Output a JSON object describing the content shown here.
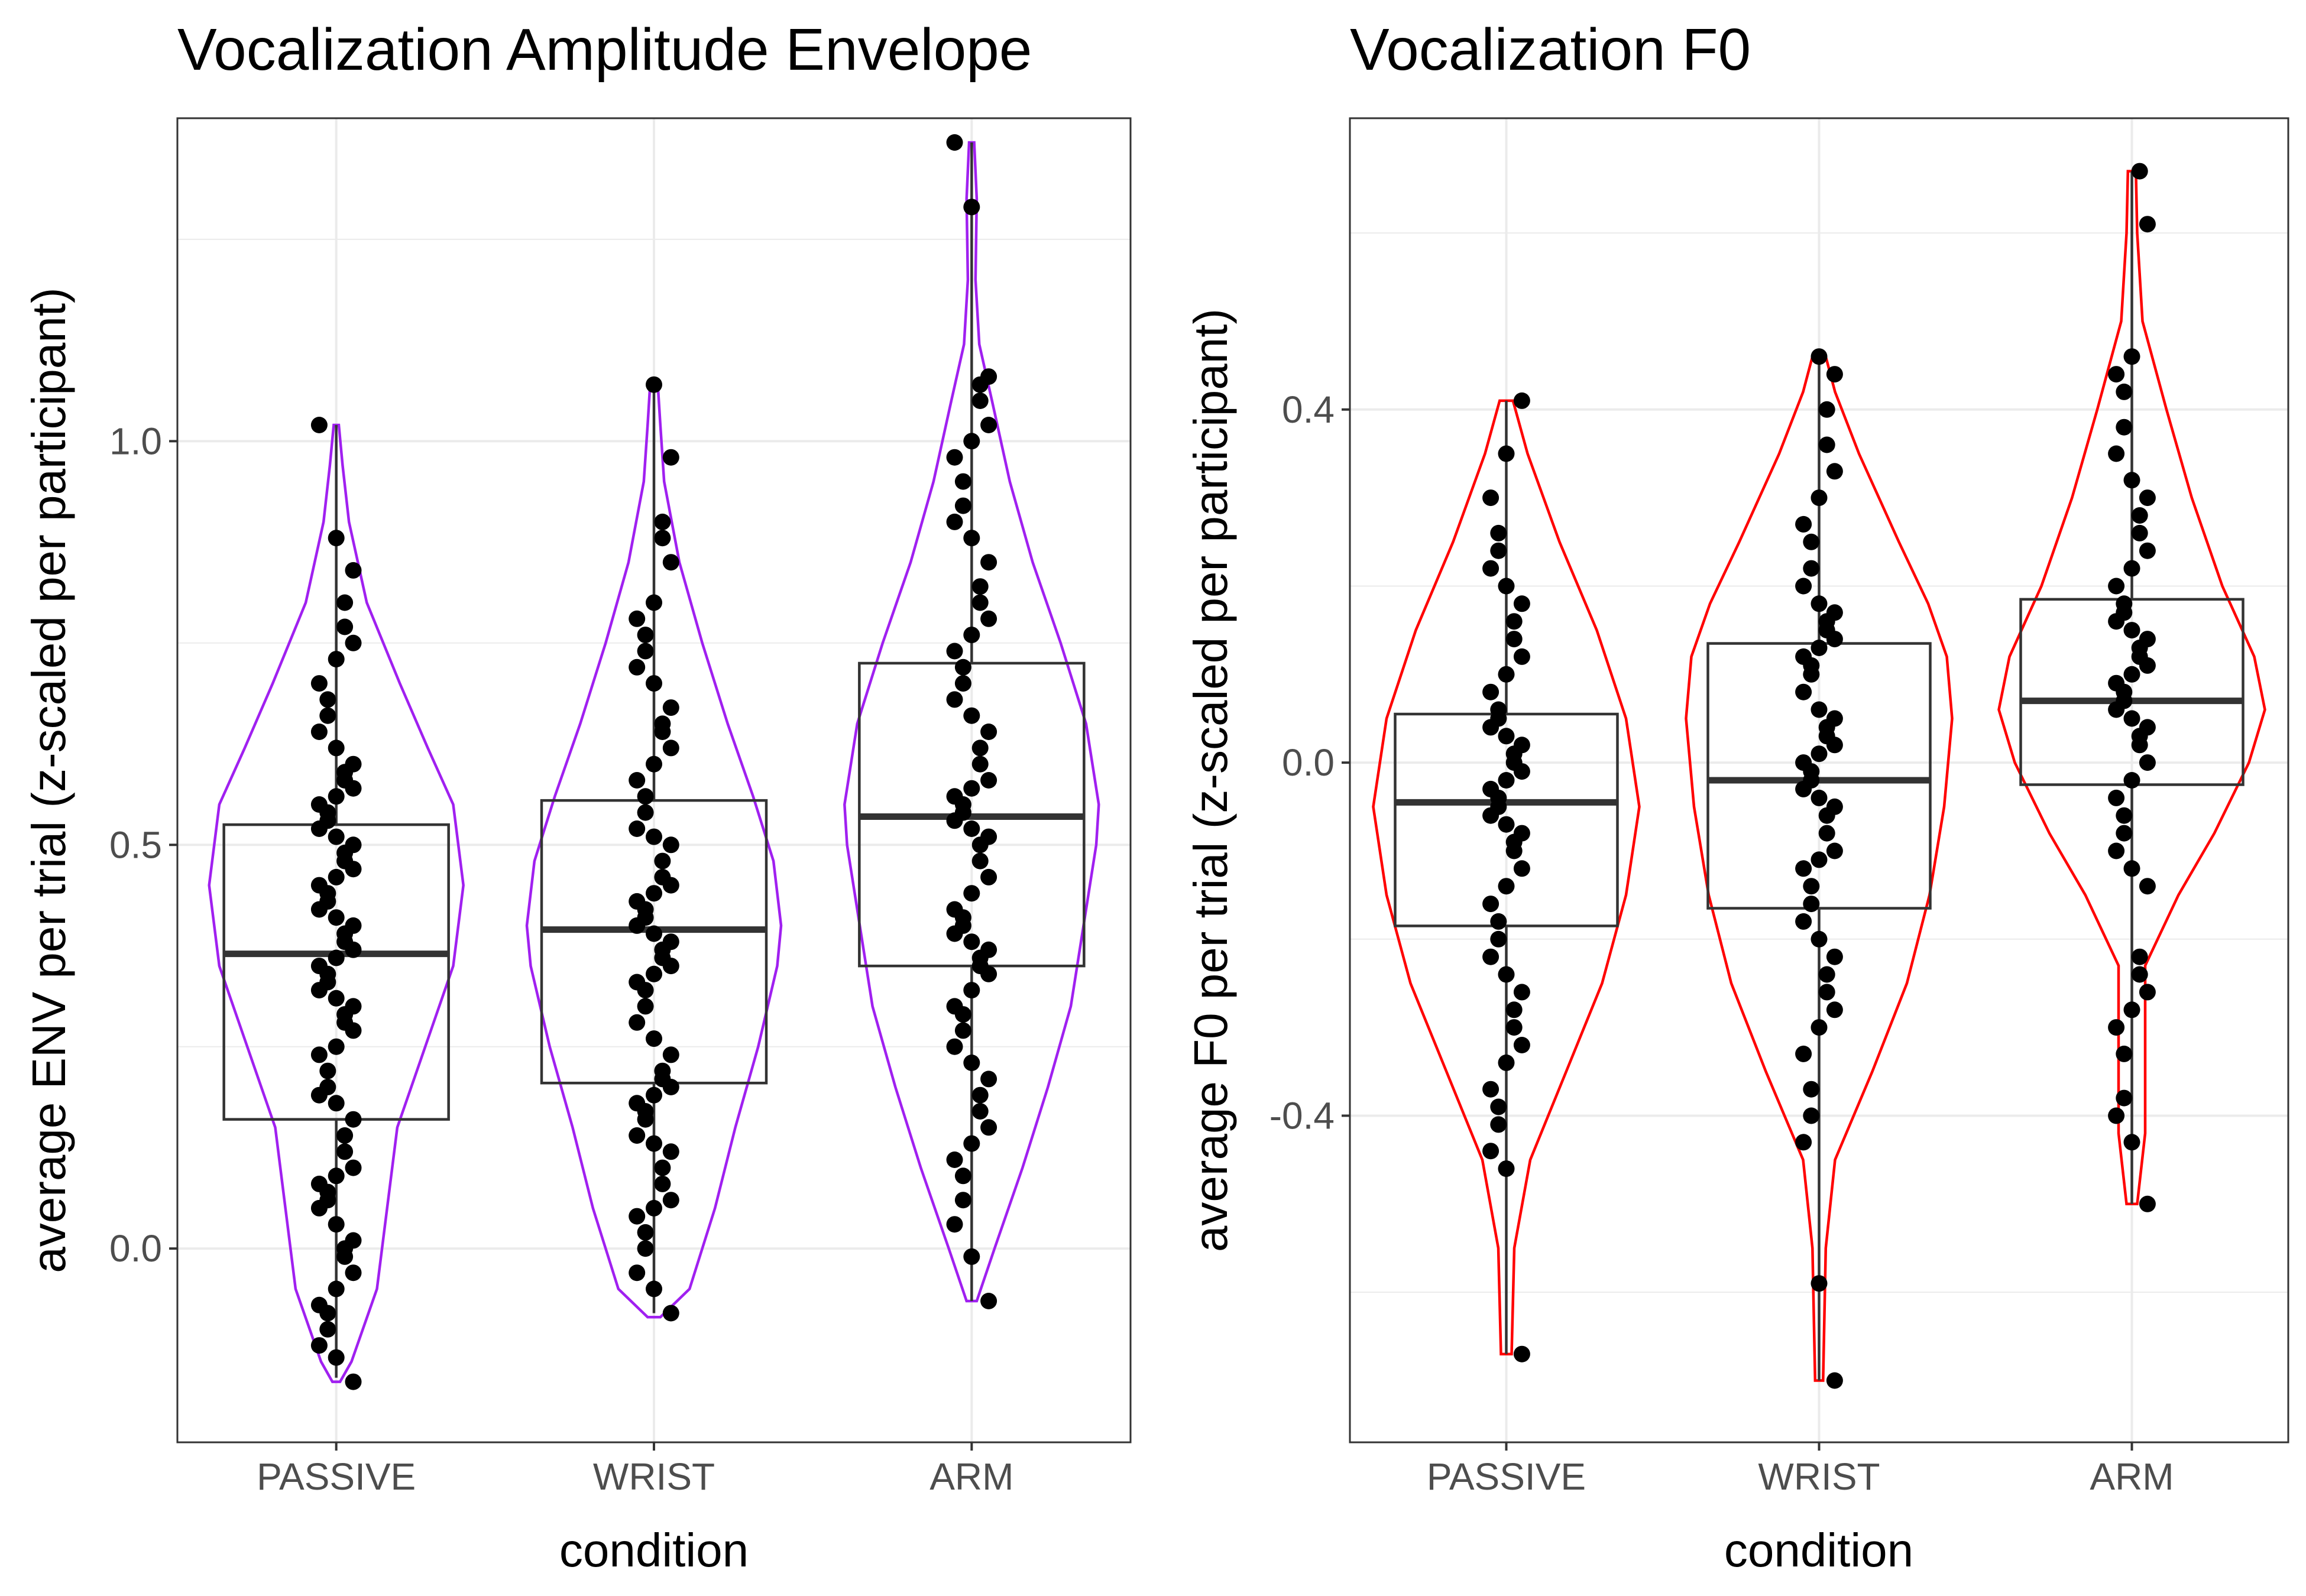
{
  "chart_data": [
    {
      "type": "violin-box-dotplot",
      "title": "Vocalization Amplitude Envelope",
      "xlabel": "condition",
      "ylabel": "average ENV per trial (z-scaled per participant)",
      "categories": [
        "PASSIVE",
        "WRIST",
        "ARM"
      ],
      "ylim": [
        -0.24,
        1.4
      ],
      "yticks": [
        0.0,
        0.5,
        1.0
      ],
      "ytick_labels": [
        "0.0",
        "0.5",
        "1.0"
      ],
      "grid": true,
      "violin_color": "#a020f0",
      "violins": [
        {
          "category": "PASSIVE",
          "profile": [
            [
              -0.165,
              0.03
            ],
            [
              -0.14,
              0.12
            ],
            [
              -0.05,
              0.32
            ],
            [
              0.05,
              0.4
            ],
            [
              0.15,
              0.48
            ],
            [
              0.25,
              0.7
            ],
            [
              0.35,
              0.92
            ],
            [
              0.45,
              1.0
            ],
            [
              0.55,
              0.92
            ],
            [
              0.62,
              0.72
            ],
            [
              0.7,
              0.5
            ],
            [
              0.8,
              0.24
            ],
            [
              0.9,
              0.1
            ],
            [
              0.97,
              0.05
            ],
            [
              1.02,
              0.02
            ]
          ]
        },
        {
          "category": "WRIST",
          "profile": [
            [
              -0.085,
              0.05
            ],
            [
              -0.05,
              0.28
            ],
            [
              0.05,
              0.48
            ],
            [
              0.15,
              0.64
            ],
            [
              0.25,
              0.82
            ],
            [
              0.35,
              0.97
            ],
            [
              0.4,
              1.0
            ],
            [
              0.48,
              0.94
            ],
            [
              0.56,
              0.78
            ],
            [
              0.65,
              0.58
            ],
            [
              0.75,
              0.38
            ],
            [
              0.85,
              0.2
            ],
            [
              0.95,
              0.08
            ],
            [
              1.02,
              0.05
            ],
            [
              1.07,
              0.03
            ]
          ]
        },
        {
          "category": "ARM",
          "profile": [
            [
              -0.065,
              0.04
            ],
            [
              0.0,
              0.18
            ],
            [
              0.1,
              0.4
            ],
            [
              0.2,
              0.6
            ],
            [
              0.3,
              0.78
            ],
            [
              0.4,
              0.88
            ],
            [
              0.5,
              0.98
            ],
            [
              0.55,
              1.0
            ],
            [
              0.65,
              0.9
            ],
            [
              0.75,
              0.7
            ],
            [
              0.85,
              0.48
            ],
            [
              0.95,
              0.3
            ],
            [
              1.05,
              0.16
            ],
            [
              1.12,
              0.06
            ],
            [
              1.2,
              0.03
            ],
            [
              1.3,
              0.04
            ],
            [
              1.37,
              0.02
            ]
          ]
        }
      ],
      "boxes": [
        {
          "category": "PASSIVE",
          "min": -0.16,
          "q1": 0.16,
          "median": 0.365,
          "q3": 0.525,
          "max": 1.02
        },
        {
          "category": "WRIST",
          "min": -0.08,
          "q1": 0.205,
          "median": 0.395,
          "q3": 0.555,
          "max": 1.07
        },
        {
          "category": "ARM",
          "min": -0.065,
          "q1": 0.35,
          "median": 0.535,
          "q3": 0.725,
          "max": 1.37
        }
      ],
      "points": [
        {
          "category": "PASSIVE",
          "values": [
            -0.165,
            -0.135,
            -0.12,
            -0.1,
            -0.08,
            -0.07,
            -0.05,
            -0.03,
            -0.01,
            0.0,
            0.01,
            0.03,
            0.05,
            0.06,
            0.07,
            0.08,
            0.09,
            0.1,
            0.12,
            0.14,
            0.16,
            0.18,
            0.19,
            0.2,
            0.22,
            0.24,
            0.25,
            0.27,
            0.28,
            0.29,
            0.3,
            0.31,
            0.32,
            0.33,
            0.34,
            0.35,
            0.36,
            0.37,
            0.38,
            0.39,
            0.4,
            0.41,
            0.42,
            0.43,
            0.44,
            0.45,
            0.46,
            0.47,
            0.48,
            0.49,
            0.5,
            0.51,
            0.52,
            0.53,
            0.54,
            0.55,
            0.56,
            0.57,
            0.58,
            0.59,
            0.6,
            0.62,
            0.64,
            0.66,
            0.68,
            0.7,
            0.73,
            0.75,
            0.77,
            0.8,
            0.84,
            0.88,
            1.02
          ]
        },
        {
          "category": "WRIST",
          "values": [
            -0.08,
            -0.05,
            -0.03,
            0.0,
            0.02,
            0.04,
            0.05,
            0.06,
            0.08,
            0.1,
            0.12,
            0.13,
            0.14,
            0.16,
            0.17,
            0.18,
            0.19,
            0.2,
            0.21,
            0.22,
            0.24,
            0.26,
            0.28,
            0.3,
            0.32,
            0.33,
            0.34,
            0.35,
            0.36,
            0.37,
            0.38,
            0.39,
            0.4,
            0.41,
            0.42,
            0.43,
            0.44,
            0.45,
            0.46,
            0.48,
            0.5,
            0.51,
            0.52,
            0.54,
            0.56,
            0.58,
            0.6,
            0.62,
            0.64,
            0.65,
            0.67,
            0.7,
            0.72,
            0.74,
            0.76,
            0.78,
            0.8,
            0.85,
            0.88,
            0.9,
            0.98,
            1.07
          ]
        },
        {
          "category": "ARM",
          "values": [
            -0.065,
            -0.01,
            0.03,
            0.06,
            0.09,
            0.11,
            0.13,
            0.15,
            0.17,
            0.19,
            0.21,
            0.23,
            0.25,
            0.27,
            0.29,
            0.3,
            0.32,
            0.34,
            0.35,
            0.36,
            0.37,
            0.38,
            0.39,
            0.4,
            0.41,
            0.42,
            0.44,
            0.46,
            0.48,
            0.5,
            0.51,
            0.52,
            0.53,
            0.54,
            0.55,
            0.56,
            0.57,
            0.58,
            0.6,
            0.62,
            0.64,
            0.66,
            0.68,
            0.7,
            0.72,
            0.74,
            0.76,
            0.78,
            0.8,
            0.82,
            0.85,
            0.88,
            0.9,
            0.92,
            0.95,
            0.98,
            1.0,
            1.02,
            1.05,
            1.07,
            1.08,
            1.29,
            1.37
          ]
        }
      ]
    },
    {
      "type": "violin-box-dotplot",
      "title": "Vocalization F0",
      "xlabel": "condition",
      "ylabel": "average F0 per trial (z-scaled per participant)",
      "categories": [
        "PASSIVE",
        "WRIST",
        "ARM"
      ],
      "ylim": [
        -0.77,
        0.73
      ],
      "yticks": [
        -0.4,
        0.0,
        0.4
      ],
      "ytick_labels": [
        "-0.4",
        "0.0",
        "0.4"
      ],
      "grid": true,
      "violin_color": "#ff0000",
      "violins": [
        {
          "category": "PASSIVE",
          "profile": [
            [
              -0.67,
              0.04
            ],
            [
              -0.55,
              0.06
            ],
            [
              -0.45,
              0.18
            ],
            [
              -0.35,
              0.45
            ],
            [
              -0.25,
              0.72
            ],
            [
              -0.15,
              0.9
            ],
            [
              -0.05,
              1.0
            ],
            [
              0.05,
              0.9
            ],
            [
              0.15,
              0.68
            ],
            [
              0.25,
              0.4
            ],
            [
              0.35,
              0.16
            ],
            [
              0.41,
              0.05
            ]
          ]
        },
        {
          "category": "WRIST",
          "profile": [
            [
              -0.7,
              0.03
            ],
            [
              -0.55,
              0.05
            ],
            [
              -0.45,
              0.12
            ],
            [
              -0.35,
              0.4
            ],
            [
              -0.25,
              0.66
            ],
            [
              -0.15,
              0.83
            ],
            [
              -0.05,
              0.94
            ],
            [
              0.05,
              1.0
            ],
            [
              0.12,
              0.96
            ],
            [
              0.18,
              0.82
            ],
            [
              0.25,
              0.6
            ],
            [
              0.35,
              0.3
            ],
            [
              0.42,
              0.12
            ],
            [
              0.46,
              0.05
            ]
          ]
        },
        {
          "category": "ARM",
          "profile": [
            [
              -0.5,
              0.04
            ],
            [
              -0.42,
              0.1
            ],
            [
              -0.33,
              0.1
            ],
            [
              -0.23,
              0.1
            ],
            [
              -0.15,
              0.35
            ],
            [
              -0.08,
              0.62
            ],
            [
              0.0,
              0.88
            ],
            [
              0.06,
              1.0
            ],
            [
              0.12,
              0.92
            ],
            [
              0.2,
              0.68
            ],
            [
              0.3,
              0.45
            ],
            [
              0.4,
              0.26
            ],
            [
              0.5,
              0.08
            ],
            [
              0.6,
              0.04
            ],
            [
              0.67,
              0.03
            ]
          ]
        }
      ],
      "boxes": [
        {
          "category": "PASSIVE",
          "min": -0.67,
          "q1": -0.185,
          "median": -0.045,
          "q3": 0.055,
          "max": 0.41
        },
        {
          "category": "WRIST",
          "min": -0.7,
          "q1": -0.165,
          "median": -0.02,
          "q3": 0.135,
          "max": 0.46
        },
        {
          "category": "ARM",
          "min": -0.5,
          "q1": -0.025,
          "median": 0.07,
          "q3": 0.185,
          "max": 0.67
        }
      ],
      "points": [
        {
          "category": "PASSIVE",
          "values": [
            -0.67,
            -0.46,
            -0.44,
            -0.41,
            -0.39,
            -0.37,
            -0.34,
            -0.32,
            -0.3,
            -0.28,
            -0.26,
            -0.24,
            -0.22,
            -0.2,
            -0.18,
            -0.16,
            -0.14,
            -0.12,
            -0.1,
            -0.09,
            -0.08,
            -0.07,
            -0.06,
            -0.05,
            -0.04,
            -0.03,
            -0.02,
            -0.01,
            0.0,
            0.01,
            0.02,
            0.03,
            0.04,
            0.05,
            0.06,
            0.08,
            0.1,
            0.12,
            0.14,
            0.16,
            0.18,
            0.2,
            0.22,
            0.24,
            0.26,
            0.3,
            0.35,
            0.41
          ]
        },
        {
          "category": "WRIST",
          "values": [
            -0.7,
            -0.59,
            -0.43,
            -0.4,
            -0.37,
            -0.33,
            -0.3,
            -0.28,
            -0.26,
            -0.24,
            -0.22,
            -0.2,
            -0.18,
            -0.16,
            -0.14,
            -0.12,
            -0.11,
            -0.1,
            -0.08,
            -0.06,
            -0.05,
            -0.04,
            -0.03,
            -0.02,
            -0.01,
            0.0,
            0.01,
            0.02,
            0.03,
            0.04,
            0.05,
            0.06,
            0.08,
            0.1,
            0.11,
            0.12,
            0.13,
            0.14,
            0.15,
            0.16,
            0.17,
            0.18,
            0.2,
            0.22,
            0.25,
            0.27,
            0.3,
            0.33,
            0.36,
            0.4,
            0.44,
            0.46
          ]
        },
        {
          "category": "ARM",
          "values": [
            -0.5,
            -0.43,
            -0.4,
            -0.38,
            -0.33,
            -0.3,
            -0.28,
            -0.26,
            -0.24,
            -0.22,
            -0.14,
            -0.12,
            -0.1,
            -0.08,
            -0.06,
            -0.04,
            -0.02,
            0.0,
            0.02,
            0.03,
            0.04,
            0.05,
            0.06,
            0.07,
            0.08,
            0.09,
            0.1,
            0.11,
            0.12,
            0.13,
            0.14,
            0.15,
            0.16,
            0.17,
            0.18,
            0.2,
            0.22,
            0.24,
            0.26,
            0.28,
            0.3,
            0.32,
            0.35,
            0.38,
            0.42,
            0.44,
            0.46,
            0.61,
            0.67
          ]
        }
      ]
    }
  ]
}
